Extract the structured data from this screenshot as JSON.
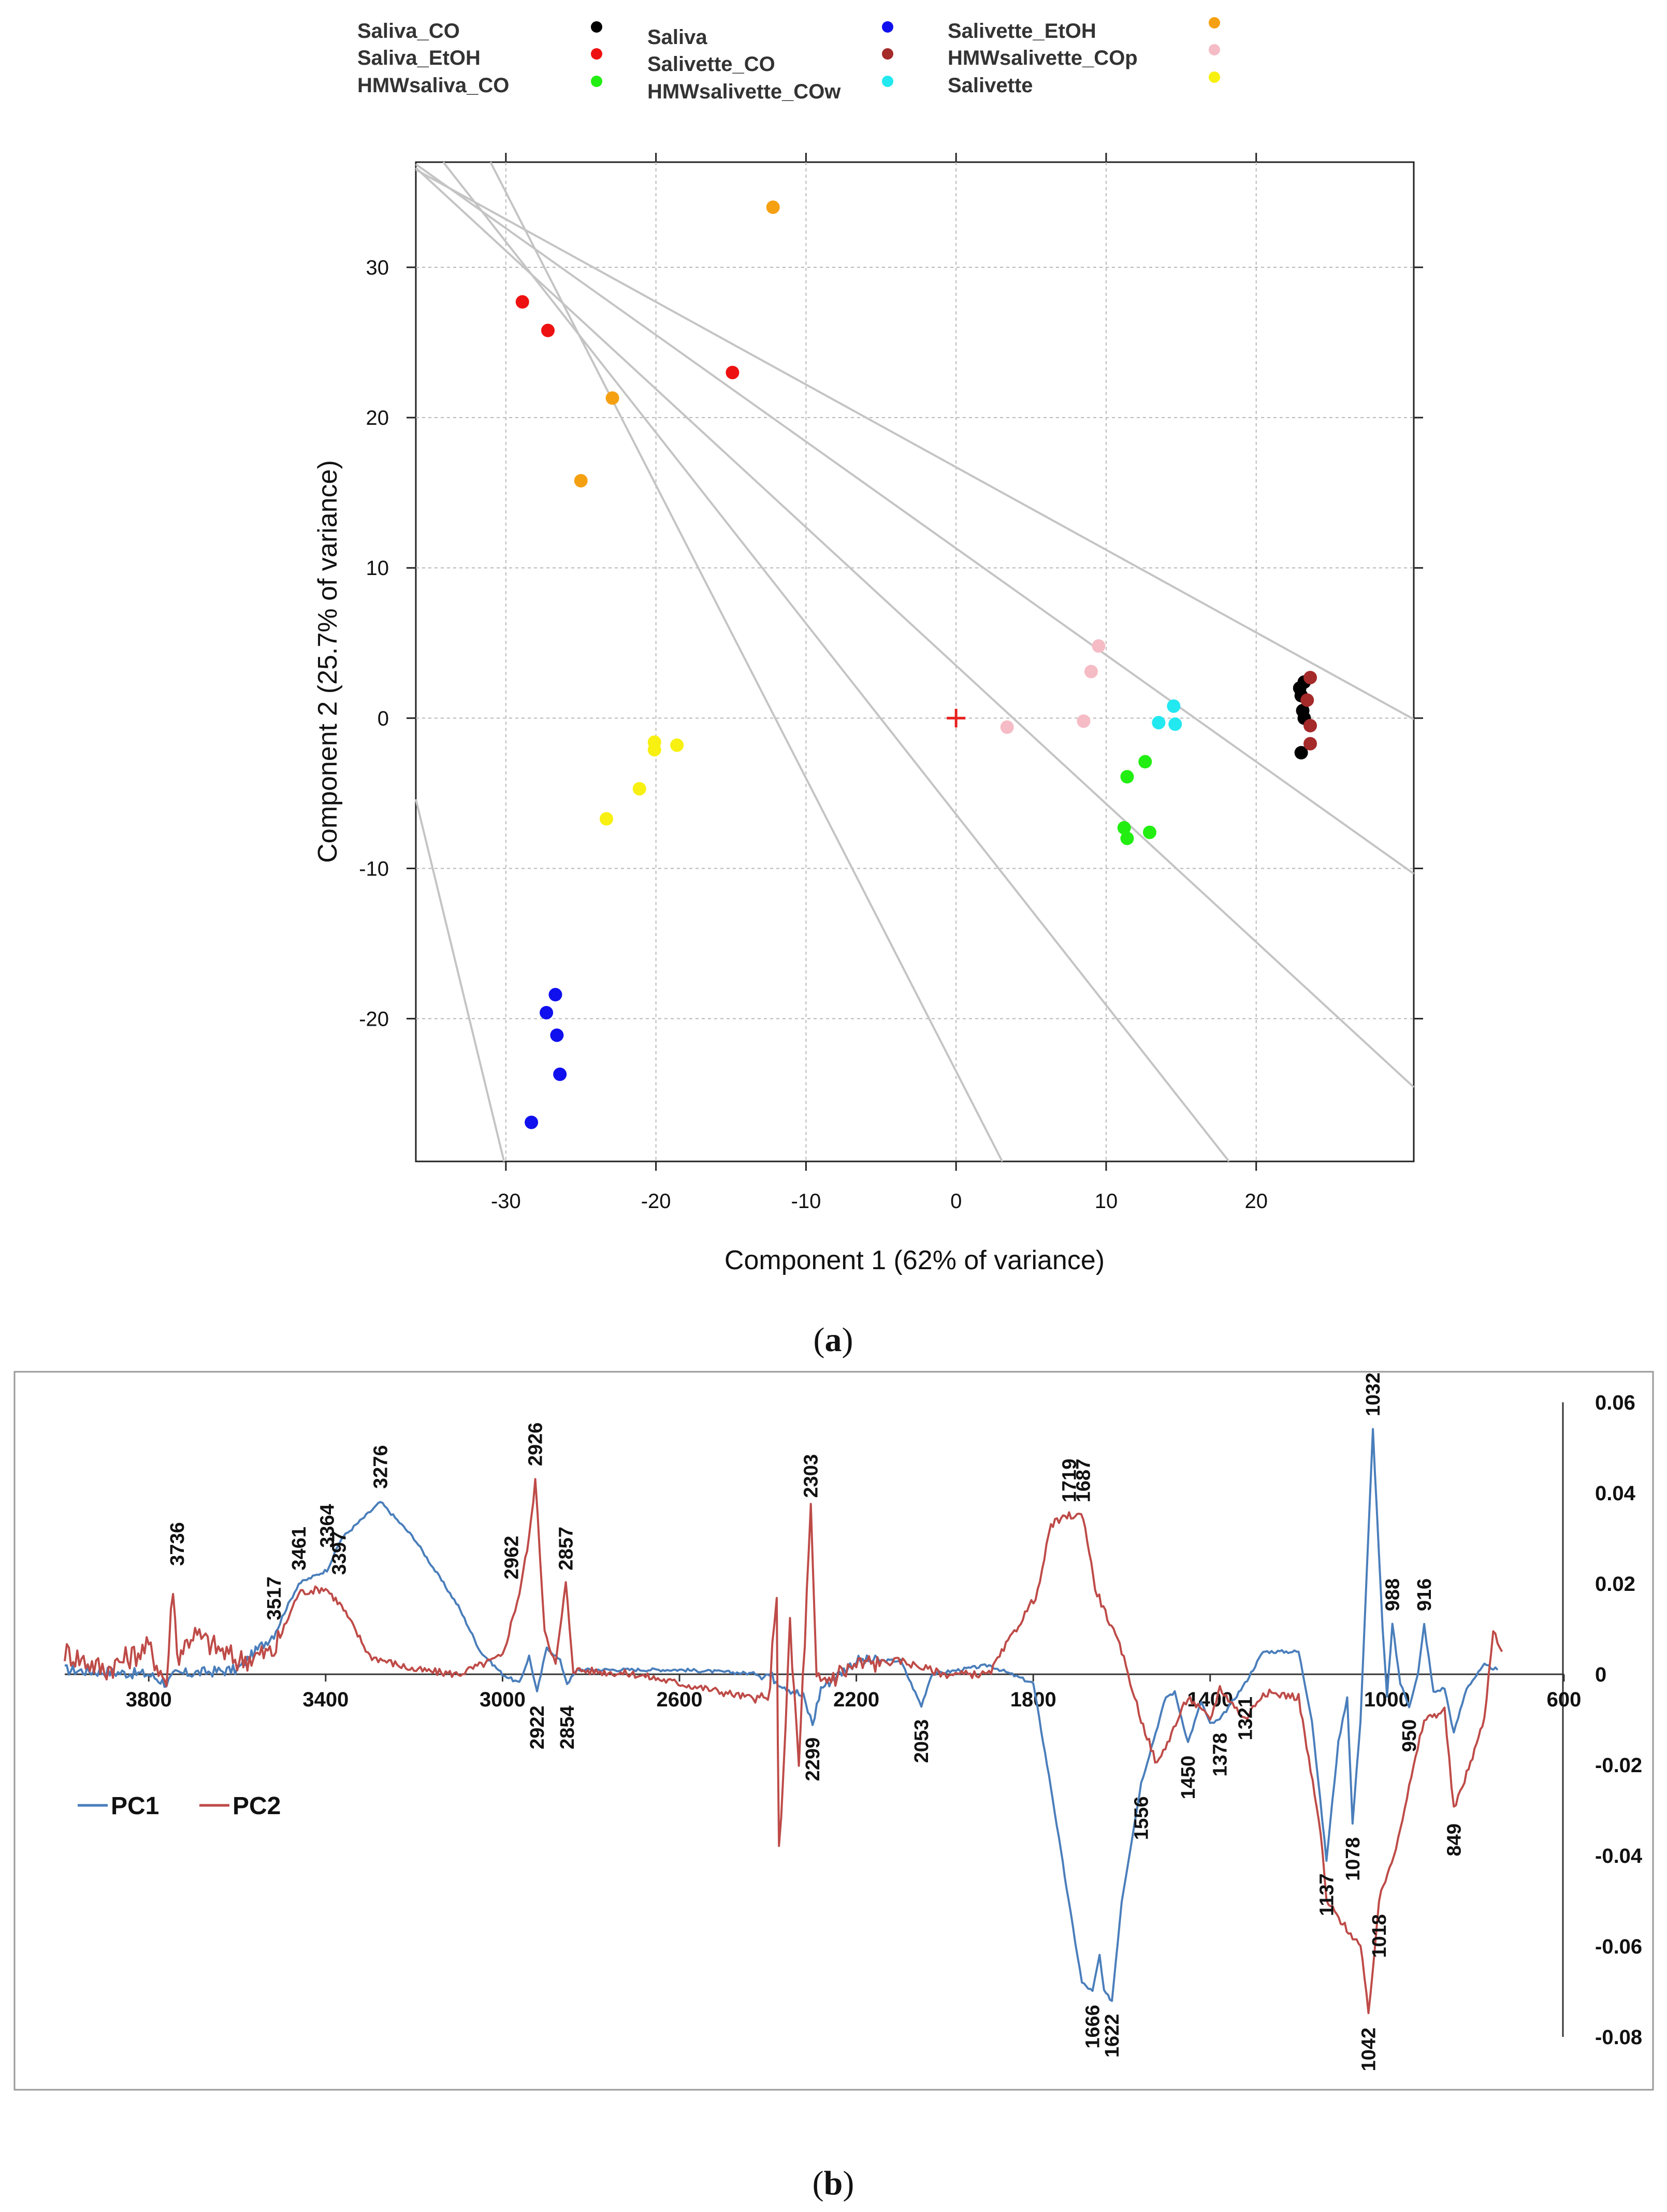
{
  "chart_data": [
    {
      "panel": "a",
      "type": "scatter",
      "caption_label": "a",
      "xlabel": "Component 1 (62% of variance)",
      "ylabel": "Component 2 (25.7% of variance)",
      "xlim": [
        -36,
        30.5
      ],
      "ylim": [
        -29.5,
        37
      ],
      "xticks": [
        "-30",
        "-20",
        "-10",
        "0",
        "10",
        "20"
      ],
      "xtick_values": [
        -30,
        -20,
        -10,
        0,
        10,
        20
      ],
      "yticks": [
        "30",
        "20",
        "10",
        "0",
        "-10",
        "-20"
      ],
      "ytick_values": [
        30,
        20,
        10,
        0,
        -10,
        -20
      ],
      "grid": true,
      "reference_lines": [
        {
          "slope": -0.55,
          "intercept": 16.7
        },
        {
          "slope": -0.71,
          "intercept": 11.3
        },
        {
          "slope": -0.92,
          "intercept": 3.5
        },
        {
          "slope": -1.27,
          "intercept": -6.4
        },
        {
          "slope": -1.95,
          "intercept": -23.5
        },
        {
          "slope": -4.1,
          "intercept": -153
        }
      ],
      "origin_marker": {
        "x": 0,
        "y": 0,
        "color": "#e8201e"
      },
      "legend": [
        {
          "name": "Saliva_CO",
          "color": "#000000"
        },
        {
          "name": "Saliva_EtOH",
          "color": "#ee1111"
        },
        {
          "name": "HMWsaliva_CO",
          "color": "#22ee11"
        },
        {
          "name": "Saliva",
          "color": "#1010ee"
        },
        {
          "name": "Salivette_CO",
          "color": "#a52a2a"
        },
        {
          "name": "HMWsalivette_COw",
          "color": "#22e8f0"
        },
        {
          "name": "Salivette_EtOH",
          "color": "#f5a011"
        },
        {
          "name": "HMWsalivette_COp",
          "color": "#f5bcc6"
        },
        {
          "name": "Salivette",
          "color": "#f7f011"
        }
      ],
      "series": [
        {
          "name": "orange",
          "color": "#f5a011",
          "points": [
            [
              -12.2,
              34.0
            ],
            [
              -22.9,
              21.3
            ],
            [
              -25.0,
              15.8
            ]
          ]
        },
        {
          "name": "red",
          "color": "#ee1111",
          "points": [
            [
              -28.9,
              27.7
            ],
            [
              -27.2,
              25.8
            ],
            [
              -14.9,
              23.0
            ]
          ]
        },
        {
          "name": "pink",
          "color": "#f5bcc6",
          "points": [
            [
              9.5,
              4.8
            ],
            [
              9.0,
              3.1
            ],
            [
              8.5,
              -0.2
            ],
            [
              3.4,
              -0.6
            ]
          ]
        },
        {
          "name": "cyan",
          "color": "#22e8f0",
          "points": [
            [
              14.5,
              0.8
            ],
            [
              13.5,
              -0.3
            ],
            [
              14.6,
              -0.4
            ]
          ]
        },
        {
          "name": "black",
          "color": "#000000",
          "points": [
            [
              22.9,
              2.0
            ],
            [
              23.2,
              2.4
            ],
            [
              23.0,
              1.5
            ],
            [
              23.1,
              0.5
            ],
            [
              23.2,
              0.0
            ],
            [
              23.0,
              -2.3
            ]
          ]
        },
        {
          "name": "brown",
          "color": "#a52a2a",
          "points": [
            [
              23.6,
              2.7
            ],
            [
              23.4,
              1.2
            ],
            [
              23.6,
              -0.5
            ],
            [
              23.6,
              -1.7
            ]
          ]
        },
        {
          "name": "green",
          "color": "#22ee11",
          "points": [
            [
              12.6,
              -2.9
            ],
            [
              11.4,
              -3.9
            ],
            [
              11.2,
              -7.3
            ],
            [
              11.4,
              -8.0
            ],
            [
              12.9,
              -7.6
            ]
          ]
        },
        {
          "name": "yellow",
          "color": "#f7f011",
          "points": [
            [
              -20.1,
              -1.6
            ],
            [
              -20.1,
              -2.1
            ],
            [
              -18.6,
              -1.8
            ],
            [
              -21.1,
              -4.7
            ],
            [
              -23.3,
              -6.7
            ]
          ]
        },
        {
          "name": "blue",
          "color": "#1010ee",
          "points": [
            [
              -26.7,
              -18.4
            ],
            [
              -27.3,
              -19.6
            ],
            [
              -26.6,
              -21.1
            ],
            [
              -26.4,
              -23.7
            ],
            [
              -28.3,
              -26.9
            ]
          ]
        }
      ]
    },
    {
      "panel": "b",
      "type": "line",
      "caption_label": "b",
      "xlabel": "",
      "ylabel": "",
      "xlim": [
        3990,
        600
      ],
      "ylim": [
        -0.08,
        0.06
      ],
      "xticks": [
        "3800",
        "3400",
        "3000",
        "2600",
        "2200",
        "1800",
        "1400",
        "1000",
        "600"
      ],
      "xtick_values": [
        3800,
        3400,
        3000,
        2600,
        2200,
        1800,
        1400,
        1000,
        600
      ],
      "yticks": [
        "0.06",
        "0.04",
        "0.02",
        "0",
        "-0.02",
        "-0.04",
        "-0.06",
        "-0.08"
      ],
      "ytick_values": [
        0.06,
        0.04,
        0.02,
        0,
        -0.02,
        -0.04,
        -0.06,
        -0.08
      ],
      "legend": [
        {
          "name": "PC1",
          "color": "#4a7ebb"
        },
        {
          "name": "PC2",
          "color": "#be4b48"
        }
      ],
      "series": [
        {
          "name": "PC1",
          "color": "#4a7ebb",
          "points": [
            [
              3990,
              0.001
            ],
            [
              3800,
              0.0
            ],
            [
              3760,
              -0.002
            ],
            [
              3740,
              0.0
            ],
            [
              3600,
              0.001
            ],
            [
              3517,
              0.009
            ],
            [
              3461,
              0.02
            ],
            [
              3397,
              0.023
            ],
            [
              3364,
              0.03
            ],
            [
              3276,
              0.038
            ],
            [
              3200,
              0.03
            ],
            [
              3100,
              0.015
            ],
            [
              3050,
              0.005
            ],
            [
              3000,
              0.0
            ],
            [
              2962,
              -0.002
            ],
            [
              2940,
              0.004
            ],
            [
              2922,
              -0.004
            ],
            [
              2900,
              0.006
            ],
            [
              2870,
              0.003
            ],
            [
              2854,
              -0.002
            ],
            [
              2830,
              0.001
            ],
            [
              2600,
              0.001
            ],
            [
              2400,
              0.0
            ],
            [
              2320,
              -0.005
            ],
            [
              2299,
              -0.011
            ],
            [
              2280,
              -0.003
            ],
            [
              2200,
              0.003
            ],
            [
              2100,
              0.003
            ],
            [
              2053,
              -0.007
            ],
            [
              2030,
              0.0
            ],
            [
              1900,
              0.002
            ],
            [
              1800,
              -0.002
            ],
            [
              1760,
              -0.025
            ],
            [
              1720,
              -0.05
            ],
            [
              1690,
              -0.068
            ],
            [
              1666,
              -0.07
            ],
            [
              1650,
              -0.062
            ],
            [
              1640,
              -0.07
            ],
            [
              1622,
              -0.072
            ],
            [
              1600,
              -0.05
            ],
            [
              1556,
              -0.024
            ],
            [
              1500,
              -0.005
            ],
            [
              1480,
              -0.004
            ],
            [
              1450,
              -0.015
            ],
            [
              1420,
              -0.006
            ],
            [
              1400,
              -0.011
            ],
            [
              1378,
              -0.01
            ],
            [
              1321,
              -0.002
            ],
            [
              1280,
              0.005
            ],
            [
              1200,
              0.005
            ],
            [
              1170,
              -0.01
            ],
            [
              1137,
              -0.041
            ],
            [
              1110,
              -0.015
            ],
            [
              1090,
              -0.005
            ],
            [
              1078,
              -0.033
            ],
            [
              1060,
              -0.01
            ],
            [
              1032,
              0.054
            ],
            [
              1010,
              0.01
            ],
            [
              1000,
              -0.005
            ],
            [
              988,
              0.011
            ],
            [
              970,
              -0.002
            ],
            [
              950,
              -0.007
            ],
            [
              930,
              0.0
            ],
            [
              916,
              0.011
            ],
            [
              895,
              -0.004
            ],
            [
              870,
              -0.003
            ],
            [
              849,
              -0.013
            ],
            [
              820,
              -0.003
            ],
            [
              780,
              0.002
            ],
            [
              750,
              0.001
            ]
          ]
        },
        {
          "name": "PC2",
          "color": "#be4b48",
          "points": [
            [
              3990,
              0.005
            ],
            [
              3900,
              0.001
            ],
            [
              3800,
              0.006
            ],
            [
              3760,
              -0.002
            ],
            [
              3745,
              0.02
            ],
            [
              3736,
              0.004
            ],
            [
              3700,
              0.009
            ],
            [
              3600,
              0.003
            ],
            [
              3517,
              0.005
            ],
            [
              3461,
              0.018
            ],
            [
              3400,
              0.019
            ],
            [
              3364,
              0.015
            ],
            [
              3300,
              0.004
            ],
            [
              3200,
              0.001
            ],
            [
              3100,
              0.0
            ],
            [
              3000,
              0.004
            ],
            [
              2962,
              0.018
            ],
            [
              2940,
              0.03
            ],
            [
              2926,
              0.043
            ],
            [
              2905,
              0.01
            ],
            [
              2880,
              0.002
            ],
            [
              2857,
              0.02
            ],
            [
              2840,
              0.001
            ],
            [
              2700,
              0.0
            ],
            [
              2500,
              -0.004
            ],
            [
              2400,
              -0.006
            ],
            [
              2380,
              0.015
            ],
            [
              2375,
              -0.04
            ],
            [
              2350,
              0.01
            ],
            [
              2330,
              -0.02
            ],
            [
              2303,
              0.036
            ],
            [
              2290,
              -0.002
            ],
            [
              2200,
              0.002
            ],
            [
              2100,
              0.003
            ],
            [
              2000,
              0.0
            ],
            [
              1900,
              0.0
            ],
            [
              1790,
              0.018
            ],
            [
              1760,
              0.033
            ],
            [
              1719,
              0.035
            ],
            [
              1687,
              0.035
            ],
            [
              1660,
              0.019
            ],
            [
              1600,
              0.005
            ],
            [
              1556,
              -0.01
            ],
            [
              1520,
              -0.02
            ],
            [
              1450,
              -0.005
            ],
            [
              1400,
              -0.01
            ],
            [
              1378,
              -0.003
            ],
            [
              1321,
              -0.01
            ],
            [
              1280,
              -0.004
            ],
            [
              1200,
              -0.005
            ],
            [
              1150,
              -0.035
            ],
            [
              1137,
              -0.05
            ],
            [
              1100,
              -0.055
            ],
            [
              1060,
              -0.06
            ],
            [
              1042,
              -0.075
            ],
            [
              1018,
              -0.05
            ],
            [
              980,
              -0.038
            ],
            [
              950,
              -0.025
            ],
            [
              916,
              -0.01
            ],
            [
              870,
              -0.008
            ],
            [
              849,
              -0.03
            ],
            [
              820,
              -0.022
            ],
            [
              780,
              -0.01
            ],
            [
              760,
              0.01
            ],
            [
              740,
              0.005
            ]
          ]
        }
      ],
      "annotations": [
        {
          "text": "3736",
          "x": 3736,
          "y": 0.023,
          "pos": "above"
        },
        {
          "text": "3517",
          "x": 3517,
          "y": 0.011,
          "pos": "above"
        },
        {
          "text": "3461",
          "x": 3461,
          "y": 0.022,
          "pos": "above"
        },
        {
          "text": "3364",
          "x": 3397,
          "y": 0.027,
          "pos": "above"
        },
        {
          "text": "3397",
          "x": 3370,
          "y": 0.021,
          "pos": "above"
        },
        {
          "text": "3276",
          "x": 3276,
          "y": 0.04,
          "pos": "above"
        },
        {
          "text": "2962",
          "x": 2980,
          "y": 0.02,
          "pos": "above"
        },
        {
          "text": "2926",
          "x": 2926,
          "y": 0.045,
          "pos": "above"
        },
        {
          "text": "2857",
          "x": 2857,
          "y": 0.022,
          "pos": "above"
        },
        {
          "text": "2303",
          "x": 2303,
          "y": 0.038,
          "pos": "above"
        },
        {
          "text": "1719",
          "x": 1719,
          "y": 0.037,
          "pos": "above"
        },
        {
          "text": "1687",
          "x": 1687,
          "y": 0.037,
          "pos": "above"
        },
        {
          "text": "1032",
          "x": 1032,
          "y": 0.056,
          "pos": "above"
        },
        {
          "text": "988",
          "x": 988,
          "y": 0.013,
          "pos": "above"
        },
        {
          "text": "916",
          "x": 916,
          "y": 0.013,
          "pos": "above"
        },
        {
          "text": "2922",
          "x": 2922,
          "y": -0.006,
          "pos": "below"
        },
        {
          "text": "2854",
          "x": 2854,
          "y": -0.006,
          "pos": "below"
        },
        {
          "text": "2299",
          "x": 2299,
          "y": -0.013,
          "pos": "below"
        },
        {
          "text": "2053",
          "x": 2053,
          "y": -0.009,
          "pos": "below"
        },
        {
          "text": "1556",
          "x": 1556,
          "y": -0.026,
          "pos": "below"
        },
        {
          "text": "1450",
          "x": 1450,
          "y": -0.017,
          "pos": "below"
        },
        {
          "text": "1378",
          "x": 1378,
          "y": -0.012,
          "pos": "below"
        },
        {
          "text": "1321",
          "x": 1321,
          "y": -0.004,
          "pos": "below"
        },
        {
          "text": "1078",
          "x": 1078,
          "y": -0.035,
          "pos": "below"
        },
        {
          "text": "950",
          "x": 950,
          "y": -0.009,
          "pos": "below"
        },
        {
          "text": "849",
          "x": 849,
          "y": -0.032,
          "pos": "below"
        },
        {
          "text": "1137",
          "x": 1137,
          "y": -0.043,
          "pos": "below"
        },
        {
          "text": "1018",
          "x": 1018,
          "y": -0.052,
          "pos": "below"
        },
        {
          "text": "1666",
          "x": 1666,
          "y": -0.072,
          "pos": "below"
        },
        {
          "text": "1622",
          "x": 1622,
          "y": -0.074,
          "pos": "below"
        },
        {
          "text": "1042",
          "x": 1042,
          "y": -0.077,
          "pos": "below"
        }
      ]
    }
  ]
}
